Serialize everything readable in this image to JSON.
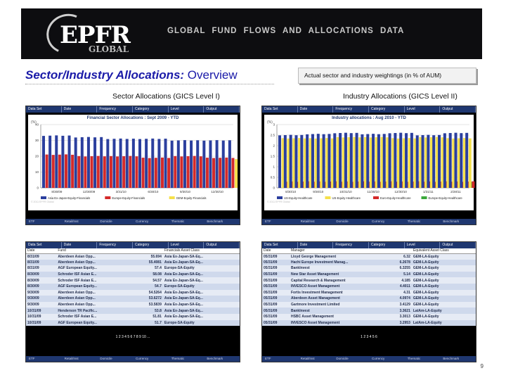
{
  "header": {
    "logo_main": "EPFR",
    "logo_sub": "GLOBAL",
    "tagline": "GLOBAL FUND FLOWS AND ALLOCATIONS DATA"
  },
  "page": {
    "title_bold": "Sector/Industry Allocations:",
    "title_rest": " Overview",
    "note": "Actual sector and industry weightings (in % of AUM)",
    "page_number": "9"
  },
  "columns": {
    "left_label_bold": "Sector Allocations",
    "left_label_rest": " (GICS Level I)",
    "right_label_bold": "Industry Allocations",
    "right_label_rest": " (GICS Level II)"
  },
  "tabs_left": [
    "Data Set",
    "Date",
    "Frequency",
    "Category",
    "Level",
    "Output"
  ],
  "tabs_right": [
    "Data Set",
    "Date",
    "Frequency",
    "Category",
    "Level",
    "Output"
  ],
  "footer_tabs": [
    "ETF",
    "Retail/Inst",
    "Domicile",
    "Currency",
    "Thematic",
    "Benchmark"
  ],
  "chart_left": {
    "title": "Financial Sector Allocations : Sept 2009 - YTD",
    "unit": "(%)",
    "copyright": "© 2011 EPFR Global",
    "chart_data": {
      "type": "bar",
      "categories": [
        "8/30/09",
        "12/30/09",
        "3/31/10",
        "6/30/10",
        "9/30/10",
        "12/30/10"
      ],
      "series": [
        {
          "name": "Asia Ex-Japan-Equity-Financials",
          "color": "#2b3f9e",
          "values": [
            33,
            32,
            31,
            31,
            30,
            30
          ]
        },
        {
          "name": "Europe-Equity-Financials",
          "color": "#d42a2a",
          "values": [
            21,
            20,
            20,
            19,
            20,
            19
          ]
        },
        {
          "name": "GEM-Equity-Financials",
          "color": "#f5e04a",
          "values": [
            19,
            19,
            18,
            18,
            19,
            18
          ]
        }
      ],
      "ylim": [
        0,
        40
      ],
      "yticks": [
        0,
        10,
        20,
        30,
        40
      ],
      "legend": "bottom"
    }
  },
  "chart_right": {
    "title": "Industry allocations : Aug 2010 - YTD",
    "unit": "(%)",
    "copyright": "© 2011 EPFR Global",
    "chart_data": {
      "type": "bar",
      "categories": [
        "8/30/10",
        "9/30/10",
        "10/31/10",
        "11/30/10",
        "12/30/10",
        "1/31/11",
        "2/28/11"
      ],
      "series": [
        {
          "name": "US-Equity-Healthcare",
          "color": "#2b3f9e",
          "values": [
            2.5,
            2.55,
            2.6,
            2.55,
            2.6,
            2.5,
            2.6
          ]
        },
        {
          "name": "US-Equity-Healthcare",
          "color": "#f5e04a",
          "values": [
            2.35,
            2.35,
            2.4,
            2.4,
            2.35,
            2.4,
            2.35
          ]
        },
        {
          "name": "Euro-Equity-Healthcare",
          "color": "#d42a2a",
          "values": [
            0.3,
            0.3,
            0.3,
            0.3,
            0.3,
            0.3,
            0.3
          ]
        },
        {
          "name": "Europe-Equity-Healthcare",
          "color": "#3aa83a",
          "values": [
            0.3,
            0.3,
            0.3,
            0.3,
            0.3,
            0.3,
            0.3
          ]
        }
      ],
      "ylim": [
        0,
        3
      ],
      "yticks": [
        0,
        0.5,
        1,
        1.5,
        2,
        2.5,
        3
      ],
      "legend": "bottom"
    }
  },
  "table_left": {
    "headers": [
      "Date",
      "Fund",
      "",
      "Financials Asset Class"
    ],
    "rows": [
      [
        "8/31/09",
        "Aberdeen Asian Opp...",
        "55.694",
        "Asia Ex-Japan-SA-Eq..."
      ],
      [
        "8/31/09",
        "Aberdeen Asian Opp...",
        "55.4081",
        "Asia Ex-Japan-SA-Eq..."
      ],
      [
        "8/31/09",
        "AGF European Equity...",
        "57.4",
        "Europe-SA-Equity"
      ],
      [
        "8/30/09",
        "Schroder ISF Asian E...",
        "58.08",
        "Asia Ex-Japan-SA-Eq..."
      ],
      [
        "8/30/09",
        "Schroder ISF Asian E...",
        "54.57",
        "Asia Ex-Japan-SA-Eq..."
      ],
      [
        "8/30/09",
        "AGF European Equity...",
        "54.7",
        "Europe-SA-Equity"
      ],
      [
        "9/30/09",
        "Aberdeen Asian Opp...",
        "54.5264",
        "Asia Ex-Japan-SA-Eq..."
      ],
      [
        "9/30/09",
        "Aberdeen Asian Opp...",
        "53.6272",
        "Asia Ex-Japan-SA-Eq..."
      ],
      [
        "9/30/09",
        "Aberdeen Asian Opp...",
        "53.5839",
        "Asia Ex-Japan-SA-Eq..."
      ],
      [
        "10/31/09",
        "Henderson TR Pacific...",
        "53.8",
        "Asia Ex-Japan-SA-Eq..."
      ],
      [
        "10/31/09",
        "Schroder ISF Asian E...",
        "51.81",
        "Asia Ex-Japan-SA-Eq..."
      ],
      [
        "10/31/09",
        "AGF European Equity...",
        "51.7",
        "Europe-SA-Equity"
      ]
    ],
    "pager": "1 2 3 4 5 6 7 8 9 10 ..."
  },
  "table_right": {
    "headers": [
      "Date",
      "Manager",
      "",
      "Equivalent Asset Class"
    ],
    "rows": [
      [
        "05/31/09",
        "Lloyd George Management",
        "6.32",
        "GEM-LA-Equity"
      ],
      [
        "05/31/09",
        "Hachi Europe Investment Manag...",
        "6.2678",
        "GEM-LA-Equity"
      ],
      [
        "05/31/09",
        "BankInvest",
        "6.3255",
        "GEM-LA-Equity"
      ],
      [
        "05/31/09",
        "New Star Asset Management",
        "5.14",
        "GEM-LA-Equity"
      ],
      [
        "05/31/09",
        "Capital Research & Management",
        "4.185",
        "GEM-LA-Equity"
      ],
      [
        "05/31/09",
        "INVESCO Asset Management",
        "4.4011",
        "GEM-LA-Equity"
      ],
      [
        "05/31/09",
        "Fortis Investment Management",
        "4.31",
        "GEM-LA-Equity"
      ],
      [
        "05/31/09",
        "Aberdeen Asset Management",
        "4.0974",
        "GEM-LA-Equity"
      ],
      [
        "05/31/09",
        "Gartmore Investment Limited",
        "3.4129",
        "GEM-LA-Equity"
      ],
      [
        "05/31/09",
        "BankInvest",
        "3.3621",
        "LatAm-LA-Equity"
      ],
      [
        "05/31/09",
        "HSBC Asset Management",
        "3.3013",
        "GEM-LA-Equity"
      ],
      [
        "05/31/09",
        "INVESCO Asset Management",
        "3.2953",
        "LatAm-LA-Equity"
      ]
    ],
    "pager": "1 2 3 4 5 6"
  }
}
